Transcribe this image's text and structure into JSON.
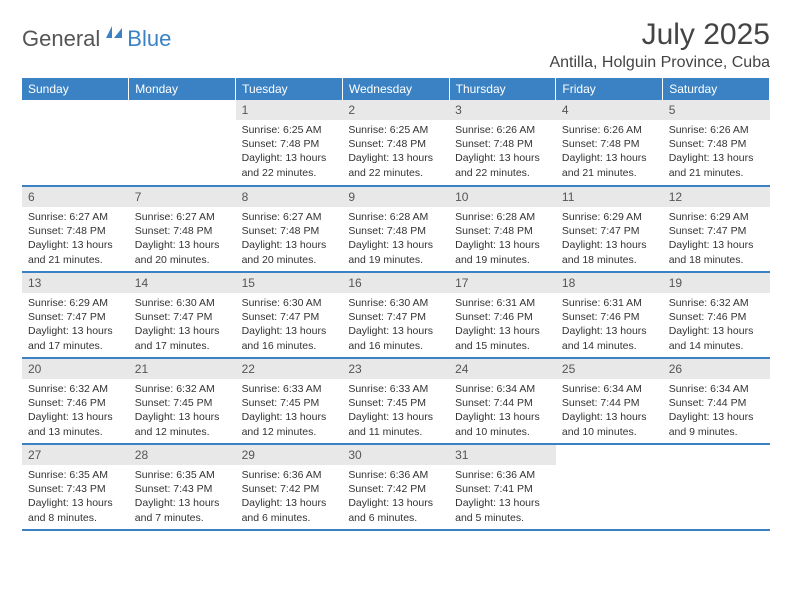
{
  "logo": {
    "part1": "General",
    "part2": "Blue"
  },
  "title": "July 2025",
  "location": "Antilla, Holguin Province, Cuba",
  "colors": {
    "header_bg": "#3b82c4",
    "header_text": "#ffffff",
    "daynum_bg": "#e8e8e8",
    "text": "#333333",
    "logo_gray": "#555555",
    "logo_blue": "#3b82c4"
  },
  "weekdays": [
    "Sunday",
    "Monday",
    "Tuesday",
    "Wednesday",
    "Thursday",
    "Friday",
    "Saturday"
  ],
  "weeks": [
    [
      null,
      null,
      {
        "n": "1",
        "sr": "6:25 AM",
        "ss": "7:48 PM",
        "dl": "13 hours and 22 minutes."
      },
      {
        "n": "2",
        "sr": "6:25 AM",
        "ss": "7:48 PM",
        "dl": "13 hours and 22 minutes."
      },
      {
        "n": "3",
        "sr": "6:26 AM",
        "ss": "7:48 PM",
        "dl": "13 hours and 22 minutes."
      },
      {
        "n": "4",
        "sr": "6:26 AM",
        "ss": "7:48 PM",
        "dl": "13 hours and 21 minutes."
      },
      {
        "n": "5",
        "sr": "6:26 AM",
        "ss": "7:48 PM",
        "dl": "13 hours and 21 minutes."
      }
    ],
    [
      {
        "n": "6",
        "sr": "6:27 AM",
        "ss": "7:48 PM",
        "dl": "13 hours and 21 minutes."
      },
      {
        "n": "7",
        "sr": "6:27 AM",
        "ss": "7:48 PM",
        "dl": "13 hours and 20 minutes."
      },
      {
        "n": "8",
        "sr": "6:27 AM",
        "ss": "7:48 PM",
        "dl": "13 hours and 20 minutes."
      },
      {
        "n": "9",
        "sr": "6:28 AM",
        "ss": "7:48 PM",
        "dl": "13 hours and 19 minutes."
      },
      {
        "n": "10",
        "sr": "6:28 AM",
        "ss": "7:48 PM",
        "dl": "13 hours and 19 minutes."
      },
      {
        "n": "11",
        "sr": "6:29 AM",
        "ss": "7:47 PM",
        "dl": "13 hours and 18 minutes."
      },
      {
        "n": "12",
        "sr": "6:29 AM",
        "ss": "7:47 PM",
        "dl": "13 hours and 18 minutes."
      }
    ],
    [
      {
        "n": "13",
        "sr": "6:29 AM",
        "ss": "7:47 PM",
        "dl": "13 hours and 17 minutes."
      },
      {
        "n": "14",
        "sr": "6:30 AM",
        "ss": "7:47 PM",
        "dl": "13 hours and 17 minutes."
      },
      {
        "n": "15",
        "sr": "6:30 AM",
        "ss": "7:47 PM",
        "dl": "13 hours and 16 minutes."
      },
      {
        "n": "16",
        "sr": "6:30 AM",
        "ss": "7:47 PM",
        "dl": "13 hours and 16 minutes."
      },
      {
        "n": "17",
        "sr": "6:31 AM",
        "ss": "7:46 PM",
        "dl": "13 hours and 15 minutes."
      },
      {
        "n": "18",
        "sr": "6:31 AM",
        "ss": "7:46 PM",
        "dl": "13 hours and 14 minutes."
      },
      {
        "n": "19",
        "sr": "6:32 AM",
        "ss": "7:46 PM",
        "dl": "13 hours and 14 minutes."
      }
    ],
    [
      {
        "n": "20",
        "sr": "6:32 AM",
        "ss": "7:46 PM",
        "dl": "13 hours and 13 minutes."
      },
      {
        "n": "21",
        "sr": "6:32 AM",
        "ss": "7:45 PM",
        "dl": "13 hours and 12 minutes."
      },
      {
        "n": "22",
        "sr": "6:33 AM",
        "ss": "7:45 PM",
        "dl": "13 hours and 12 minutes."
      },
      {
        "n": "23",
        "sr": "6:33 AM",
        "ss": "7:45 PM",
        "dl": "13 hours and 11 minutes."
      },
      {
        "n": "24",
        "sr": "6:34 AM",
        "ss": "7:44 PM",
        "dl": "13 hours and 10 minutes."
      },
      {
        "n": "25",
        "sr": "6:34 AM",
        "ss": "7:44 PM",
        "dl": "13 hours and 10 minutes."
      },
      {
        "n": "26",
        "sr": "6:34 AM",
        "ss": "7:44 PM",
        "dl": "13 hours and 9 minutes."
      }
    ],
    [
      {
        "n": "27",
        "sr": "6:35 AM",
        "ss": "7:43 PM",
        "dl": "13 hours and 8 minutes."
      },
      {
        "n": "28",
        "sr": "6:35 AM",
        "ss": "7:43 PM",
        "dl": "13 hours and 7 minutes."
      },
      {
        "n": "29",
        "sr": "6:36 AM",
        "ss": "7:42 PM",
        "dl": "13 hours and 6 minutes."
      },
      {
        "n": "30",
        "sr": "6:36 AM",
        "ss": "7:42 PM",
        "dl": "13 hours and 6 minutes."
      },
      {
        "n": "31",
        "sr": "6:36 AM",
        "ss": "7:41 PM",
        "dl": "13 hours and 5 minutes."
      },
      null,
      null
    ]
  ],
  "labels": {
    "sunrise": "Sunrise:",
    "sunset": "Sunset:",
    "daylight": "Daylight:"
  }
}
